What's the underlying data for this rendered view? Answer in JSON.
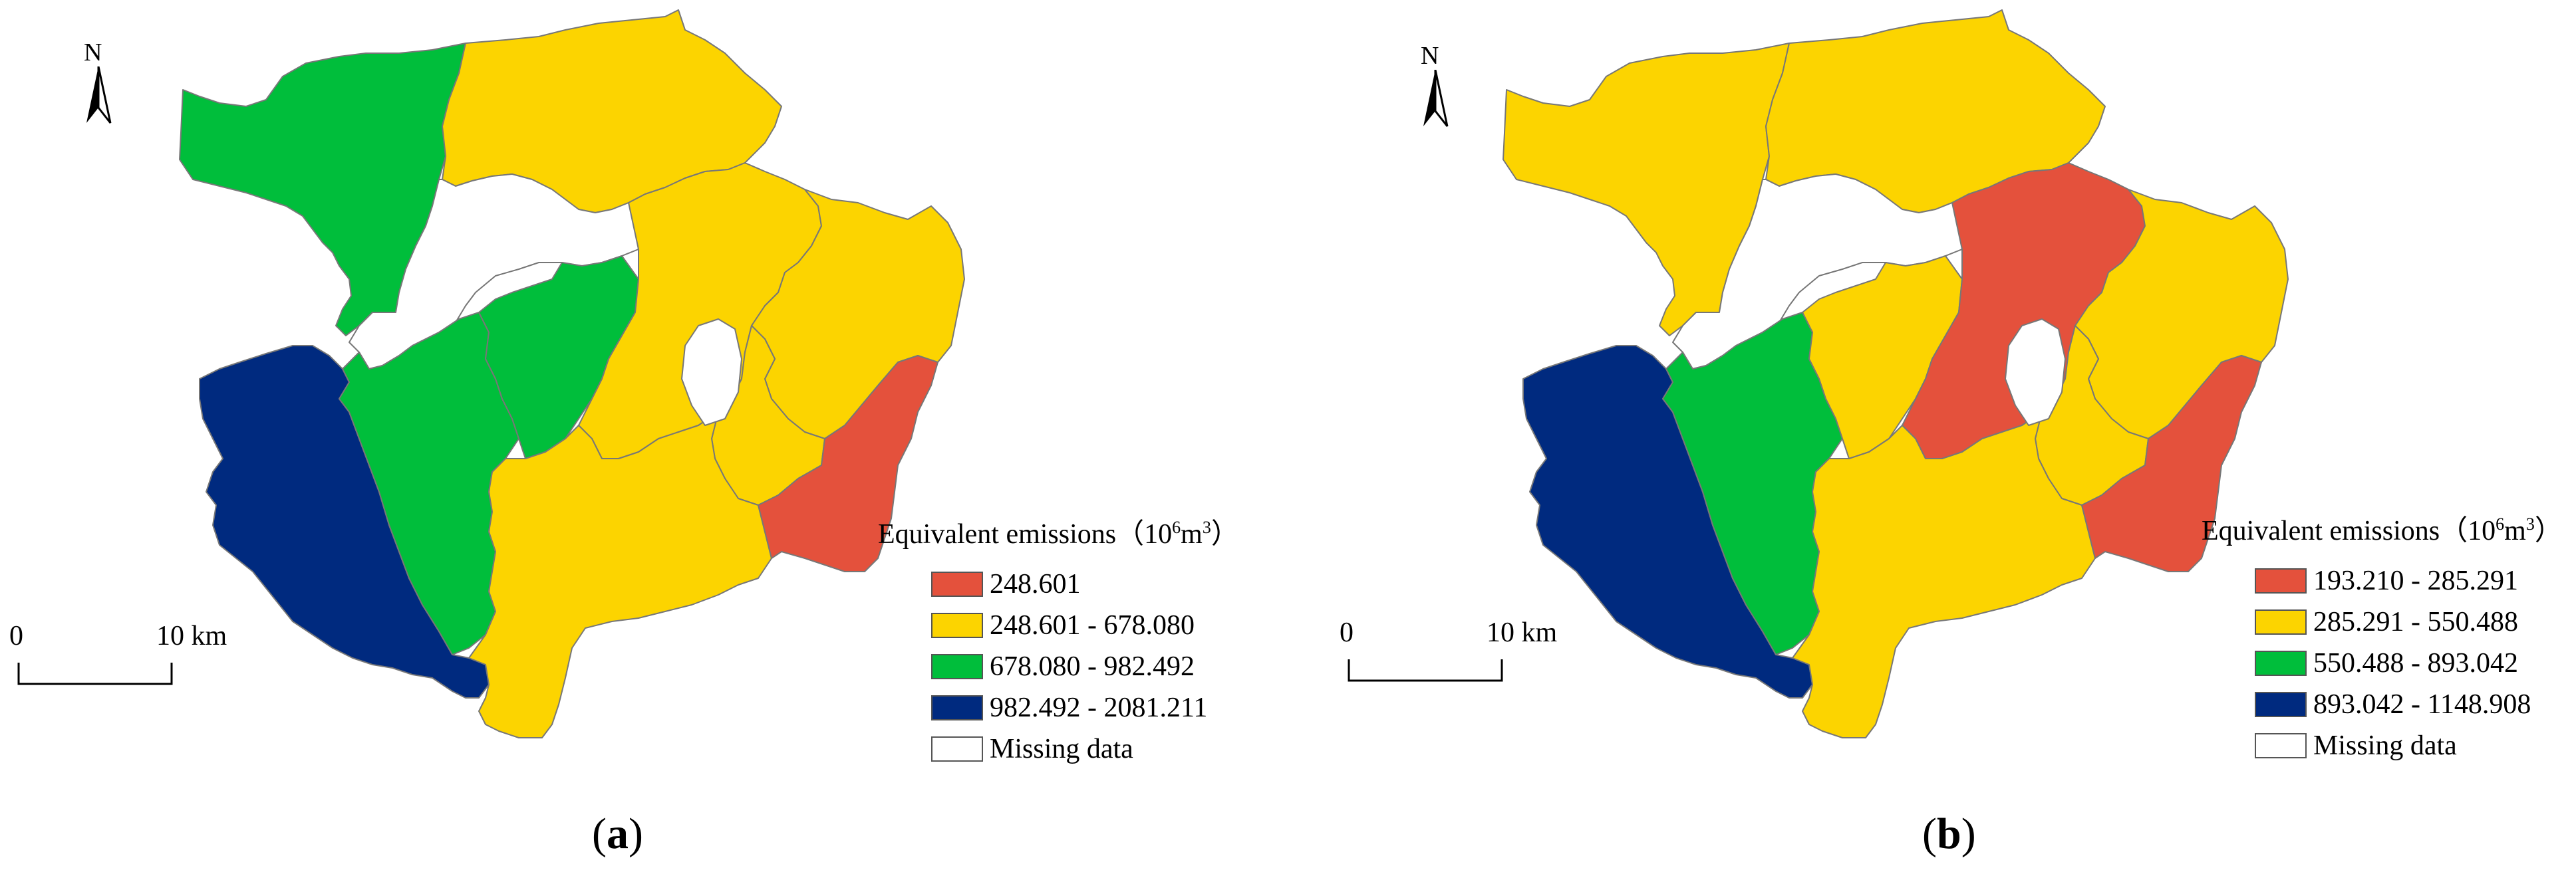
{
  "north_label": "N",
  "scale": {
    "zero": "0",
    "ten": "10 km"
  },
  "legend_title": {
    "text": "Equivalent emissions（10",
    "sup": "6",
    "unit": "m",
    "unit_sup": "3",
    "close": "）"
  },
  "missing_label": "Missing data",
  "panels": [
    {
      "label_open": "(",
      "label": "a",
      "label_close": ")",
      "classes": [
        {
          "label": "248.601",
          "color": "#E4513C"
        },
        {
          "label": "248.601 - 678.080",
          "color": "#FCD400"
        },
        {
          "label": "678.080 - 982.492",
          "color": "#00BE3B"
        },
        {
          "label": "982.492 - 2081.211",
          "color": "#002A7F"
        }
      ],
      "regions": {
        "northwest": "#00BE3B",
        "north": "#FCD400",
        "west": "#002A7F",
        "center_west": "#00BE3B",
        "center": "#00BE3B",
        "north_central": "#FCD400",
        "east_north": "#FCD400",
        "east_central": "#FCD400",
        "south": "#FCD400",
        "east": "#E4513C"
      }
    },
    {
      "label_open": "(",
      "label": "b",
      "label_close": ")",
      "classes": [
        {
          "label": "193.210 - 285.291",
          "color": "#E4513C"
        },
        {
          "label": "285.291 - 550.488",
          "color": "#FCD400"
        },
        {
          "label": "550.488 - 893.042",
          "color": "#00BE3B"
        },
        {
          "label": "893.042 - 1148.908",
          "color": "#002A7F"
        }
      ],
      "regions": {
        "northwest": "#FCD400",
        "north": "#FCD400",
        "west": "#002A7F",
        "center_west": "#00BE3B",
        "center": "#FCD400",
        "north_central": "#E4513C",
        "east_north": "#FCD400",
        "east_central": "#FCD400",
        "south": "#FCD400",
        "east": "#E4513C"
      }
    }
  ],
  "missing_color": "#FFFFFF"
}
